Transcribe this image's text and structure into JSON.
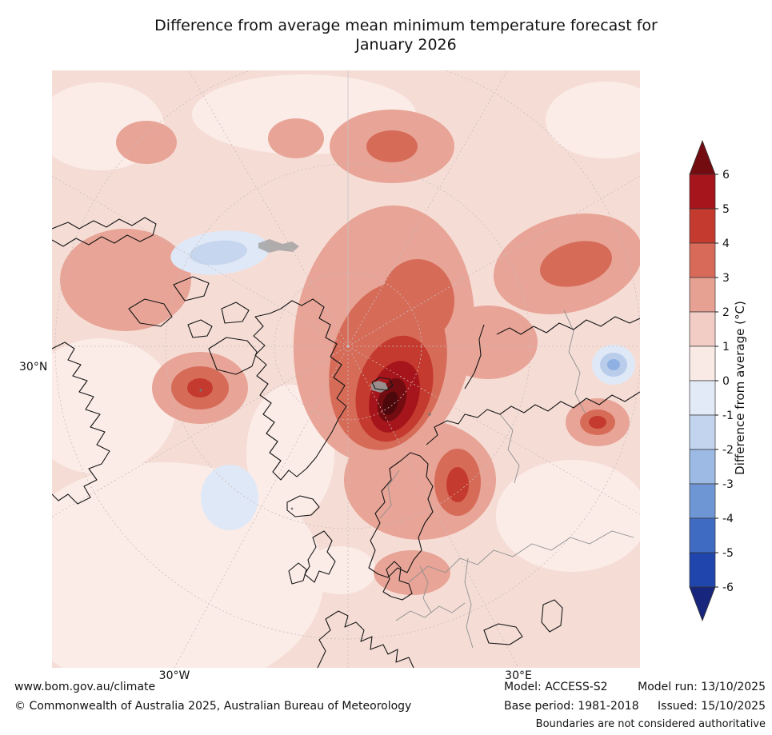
{
  "title": {
    "line1": "Difference from average mean minimum temperature forecast for",
    "line2": "January 2026"
  },
  "map": {
    "lat_label": "30°N",
    "lon_west_label": "30°W",
    "lon_east_label": "30°E"
  },
  "colorbar": {
    "label": "Difference from average (°C)",
    "ticks": [
      "6",
      "5",
      "4",
      "3",
      "2",
      "1",
      "0",
      "-1",
      "-2",
      "-3",
      "-4",
      "-5",
      "-6"
    ],
    "segments_top_to_bottom": [
      "#a6151b",
      "#c53a2e",
      "#d86a5a",
      "#e7a193",
      "#f1cdc5",
      "#faeae6",
      "#e3eaf7",
      "#c3d4ef",
      "#9cbae4",
      "#6f96d4",
      "#3f6cc2",
      "#2046ad"
    ],
    "arrow_over_color": "#730c11",
    "arrow_under_color": "#17257d"
  },
  "footer": {
    "url": "www.bom.gov.au/climate",
    "copyright": "© Commonwealth of Australia 2025, Australian Bureau of Meteorology",
    "model": "Model: ACCESS-S2",
    "base_period": "Base period: 1981-2018",
    "model_run": "Model run: 13/10/2025",
    "issued": "Issued: 15/10/2025",
    "disclaimer": "Boundaries are not considered authoritative"
  }
}
